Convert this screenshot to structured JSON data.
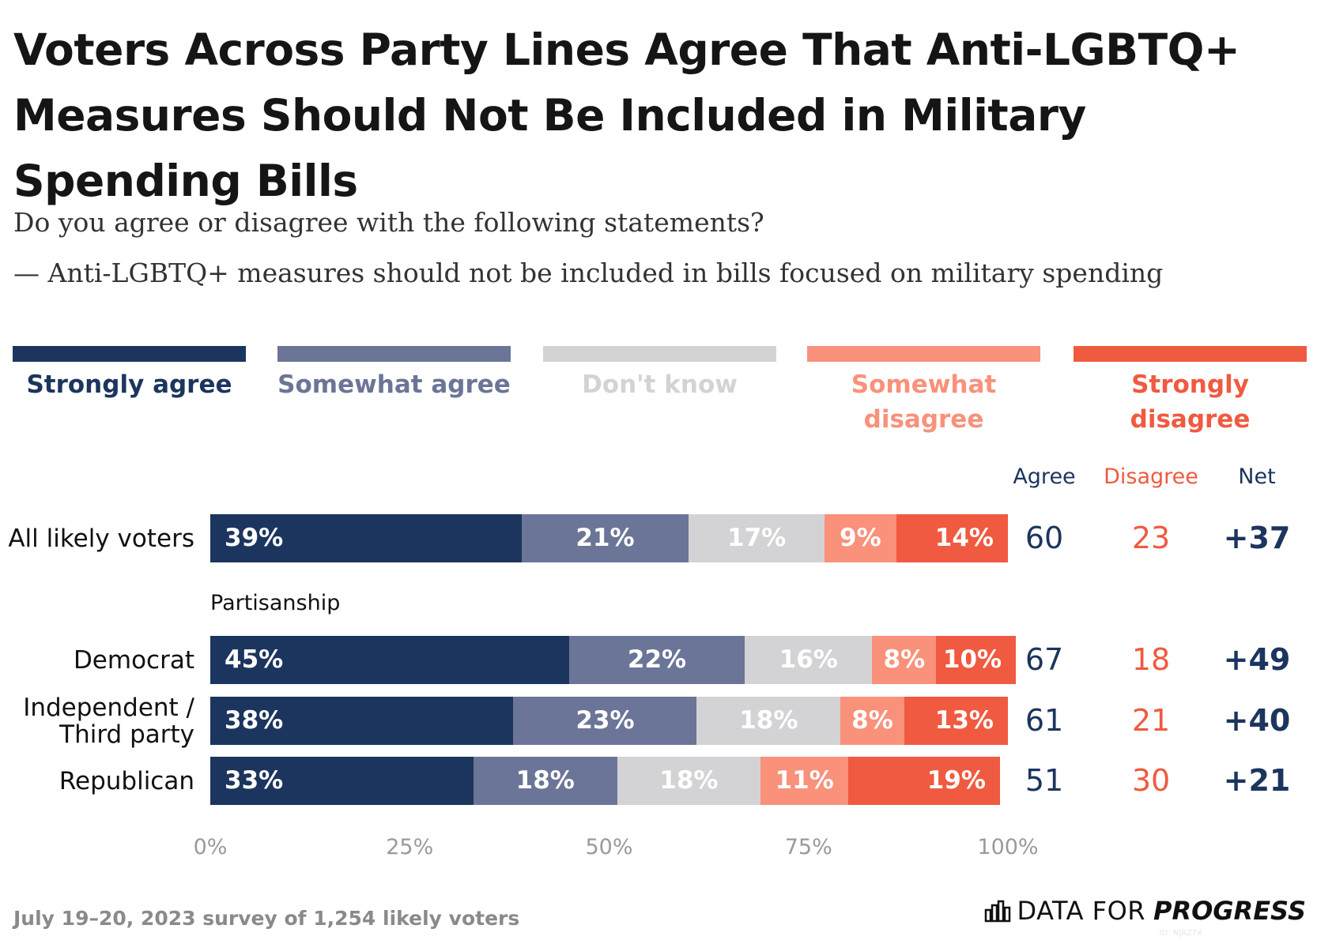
{
  "chart_data": {
    "type": "stacked_bar",
    "title": "Voters Across Party Lines Agree That Anti-LGBTQ+ Measures Should Not Be Included in Military Spending Bills",
    "subtitle": "Do you agree or disagree with the following statements?",
    "statement": "— Anti-LGBTQ+ measures should not be included in bills focused on military spending",
    "categories": [
      "All likely voters",
      "Democrat",
      "Independent / Third party",
      "Republican"
    ],
    "group_label": "Partisanship",
    "series": [
      {
        "name": "Strongly agree",
        "color": "#1c355e",
        "values": [
          39,
          45,
          38,
          33
        ],
        "value_labels": [
          "39%",
          "45%",
          "38%",
          "33%"
        ]
      },
      {
        "name": "Somewhat agree",
        "color": "#6b7597",
        "values": [
          21,
          22,
          23,
          18
        ],
        "value_labels": [
          "21%",
          "22%",
          "23%",
          "18%"
        ]
      },
      {
        "name": "Don't know",
        "color": "#d3d3d6",
        "values": [
          17,
          16,
          18,
          18
        ],
        "value_labels": [
          "17%",
          "16%",
          "18%",
          "18%"
        ]
      },
      {
        "name": "Somewhat disagree",
        "color": "#f9917b",
        "values": [
          9,
          8,
          8,
          11
        ],
        "value_labels": [
          "9%",
          "8%",
          "8%",
          "11%"
        ]
      },
      {
        "name": "Strongly disagree",
        "color": "#f05a40",
        "values": [
          14,
          10,
          13,
          19
        ],
        "value_labels": [
          "14%",
          "10%",
          "13%",
          "19%"
        ]
      }
    ],
    "summary": [
      {
        "name": "Agree",
        "color": "#1c355e",
        "values": [
          60,
          67,
          61,
          51
        ]
      },
      {
        "name": "Disagree",
        "color": "#f05a40",
        "values": [
          23,
          18,
          21,
          30
        ]
      },
      {
        "name": "Net",
        "color": "#1c355e",
        "values": [
          37,
          49,
          40,
          21
        ],
        "value_labels": [
          "+37",
          "+49",
          "+40",
          "+21"
        ]
      }
    ],
    "xlim": [
      0,
      100
    ],
    "xticks": [
      {
        "value": 0,
        "label": "0%"
      },
      {
        "value": 25,
        "label": "25%"
      },
      {
        "value": 50,
        "label": "50%"
      },
      {
        "value": 75,
        "label": "75%"
      },
      {
        "value": 100,
        "label": "100%"
      }
    ],
    "footnote": "July 19–20, 2023 survey of 1,254 likely voters",
    "logo": {
      "prefix": "DATA FOR",
      "name": "PROGRESS"
    },
    "id": "ID: NJAZ7X"
  }
}
